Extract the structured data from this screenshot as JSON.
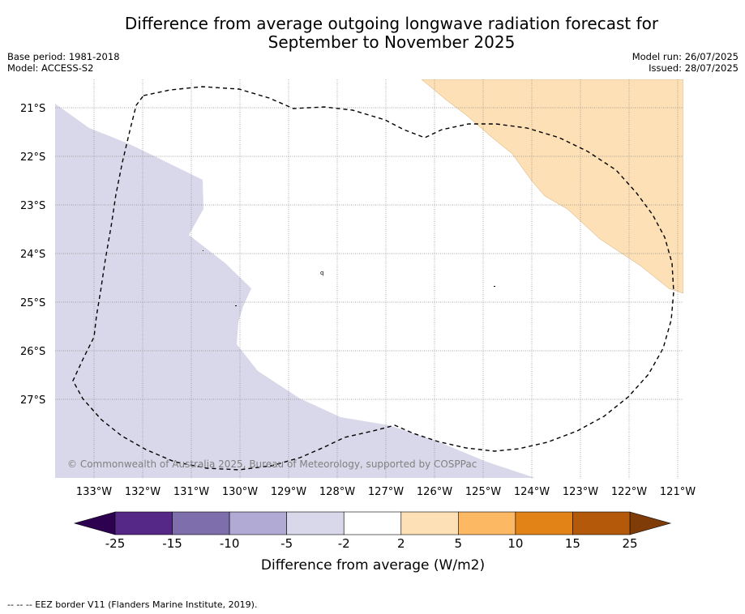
{
  "header": {
    "title_line1": "Difference from average outgoing longwave radiation forecast for",
    "title_line2": "September to November 2025",
    "base_period": "Base period: 1981-2018",
    "model": "Model: ACCESS-S2",
    "model_run": "Model run: 26/07/2025",
    "issued": "Issued: 28/07/2025"
  },
  "map": {
    "lat_labels": [
      "21°S",
      "22°S",
      "23°S",
      "24°S",
      "25°S",
      "26°S",
      "27°S"
    ],
    "lon_labels": [
      "133°W",
      "132°W",
      "131°W",
      "130°W",
      "129°W",
      "128°W",
      "127°W",
      "126°W",
      "125°W",
      "124°W",
      "123°W",
      "122°W",
      "121°W"
    ],
    "copyright": "© Commonwealth of Australia 2025, Bureau of Meteorology, supported by COSPPac",
    "colors": {
      "lavender": "#d8d8ea",
      "peach": "#fde0b6",
      "grid": "#888888",
      "eez": "#000000"
    }
  },
  "legend": {
    "bins": [
      {
        "label": "-25",
        "color": "#552888"
      },
      {
        "label": "-15",
        "color": "#7e6fac"
      },
      {
        "label": "-10",
        "color": "#b1aad4"
      },
      {
        "label": "-5",
        "color": "#d8d8ea"
      },
      {
        "label": "-2",
        "color": "#ffffff"
      },
      {
        "label": "2",
        "color": "#fde0b6"
      },
      {
        "label": "5",
        "color": "#fdb864"
      },
      {
        "label": "10",
        "color": "#e28318"
      },
      {
        "label": "15",
        "color": "#b4580a"
      },
      {
        "label": "25",
        "color": ""
      }
    ],
    "under_color": "#2d0050",
    "over_color": "#7f3b08",
    "axis_label": "Difference from average (W/m2)"
  },
  "footer": {
    "eez_note": "--  --  -- EEZ border V11 (Flanders Marine Institute, 2019)."
  }
}
